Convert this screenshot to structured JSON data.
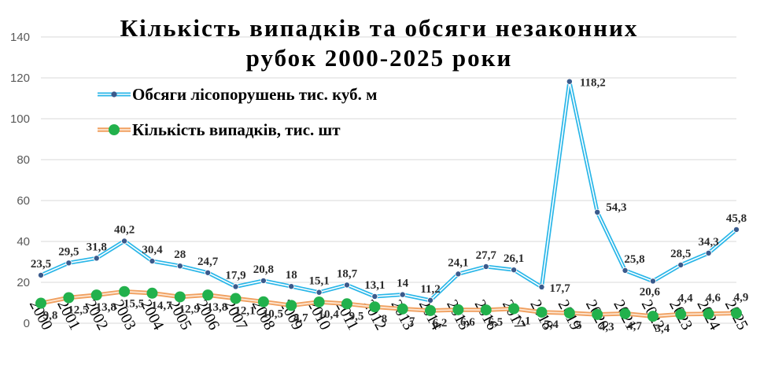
{
  "chart_data": {
    "type": "line",
    "title": [
      "Кількість випадків та обсяги незаконних",
      "рубок 2000-2025 роки"
    ],
    "categories": [
      "2000",
      "2001",
      "2002",
      "2003",
      "2004",
      "2005",
      "2006",
      "2007",
      "2008",
      "2009",
      "2010",
      "2011",
      "2012",
      "2013",
      "2014",
      "2015",
      "2016",
      "2017",
      "2018",
      "2019",
      "2020",
      "2021",
      "2022",
      "2023",
      "2024",
      "2025"
    ],
    "ylim": [
      0,
      140
    ],
    "yticks": [
      "0",
      "20",
      "40",
      "60",
      "80",
      "100",
      "120",
      "140"
    ],
    "grid": "horizontal",
    "legend": "top-left",
    "series": [
      {
        "name": "Обсяги лісопорушень тис. куб. м",
        "color": "#29b6e8",
        "marker_color": "#3a5a8c",
        "values": [
          23.5,
          29.5,
          31.8,
          40.2,
          30.4,
          28,
          24.7,
          17.9,
          20.8,
          18,
          15.1,
          18.7,
          13.1,
          14,
          11.2,
          24.1,
          27.7,
          26.1,
          17.7,
          118.2,
          54.3,
          25.8,
          20.6,
          28.5,
          34.3,
          45.8
        ],
        "labels": [
          "23,5",
          "29,5",
          "31,8",
          "40,2",
          "30,4",
          "28",
          "24,7",
          "17,9",
          "20,8",
          "18",
          "15,1",
          "18,7",
          "13,1",
          "14",
          "11,2",
          "24,1",
          "27,7",
          "26,1",
          "17,7",
          "118,2",
          "54,3",
          "25,8",
          "20,6",
          "28,5",
          "34,3",
          "45,8"
        ]
      },
      {
        "name": "Кількість випадків, тис. шт",
        "color": "#f0a060",
        "marker_color": "#22b14c",
        "values": [
          9.8,
          12.5,
          13.8,
          15.5,
          14.7,
          12.9,
          13.8,
          12.1,
          10.5,
          8.7,
          10.4,
          9.5,
          8,
          7,
          6.2,
          6.6,
          6.5,
          7.1,
          5.4,
          5,
          4.3,
          4.7,
          3.4,
          4.4,
          4.6,
          4.9
        ],
        "labels": [
          "9,8",
          "12,5",
          "13,8",
          "15,5",
          "14,7",
          "12,9",
          "13,8",
          "12,1",
          "10,5",
          "8,7",
          "10,4",
          "9,5",
          "8",
          "7",
          "6,2",
          "6,6",
          "6,5",
          "7,1",
          "5,4",
          "5",
          "4,3",
          "4,7",
          "3,4",
          "4,4",
          "4,6",
          "4,9"
        ]
      }
    ]
  }
}
